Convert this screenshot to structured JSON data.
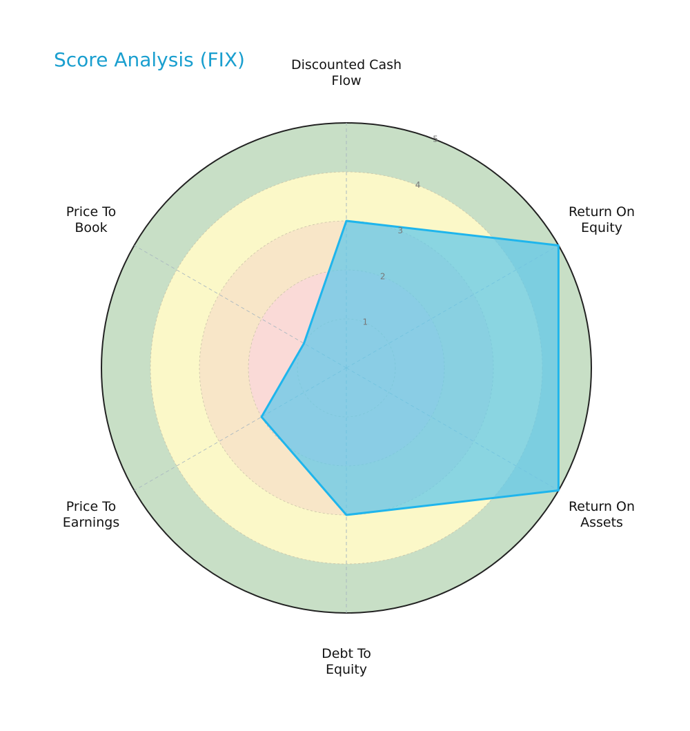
{
  "title": "Score Analysis (FIX)",
  "colors": {
    "accent": "#1fb5ec",
    "fill": "#5ec8ea",
    "ring5": "#c8dfc6",
    "ring4": "#fbf8c8",
    "ring3": "#f8e6c8",
    "ring2": "#fadad7",
    "title": "#1a9fcf"
  },
  "chart_data": {
    "type": "radar",
    "title": "Score Analysis (FIX)",
    "categories": [
      "Discounted Cash Flow",
      "Return On Equity",
      "Return On Assets",
      "Debt To Equity",
      "Price To Earnings",
      "Price To Book"
    ],
    "values": [
      3,
      5,
      5,
      3,
      2,
      1
    ],
    "rlim": [
      0,
      5
    ],
    "rticks": [
      1,
      2,
      3,
      4,
      5
    ],
    "grid": true,
    "legend": null
  },
  "labels": [
    {
      "line1": "Discounted Cash",
      "line2": "Flow"
    },
    {
      "line1": "Return On",
      "line2": "Equity"
    },
    {
      "line1": "Return On",
      "line2": "Assets"
    },
    {
      "line1": "Debt To",
      "line2": "Equity"
    },
    {
      "line1": "Price To",
      "line2": "Earnings"
    },
    {
      "line1": "Price To",
      "line2": "Book"
    }
  ],
  "ticks": [
    "1",
    "2",
    "3",
    "4",
    "5"
  ]
}
